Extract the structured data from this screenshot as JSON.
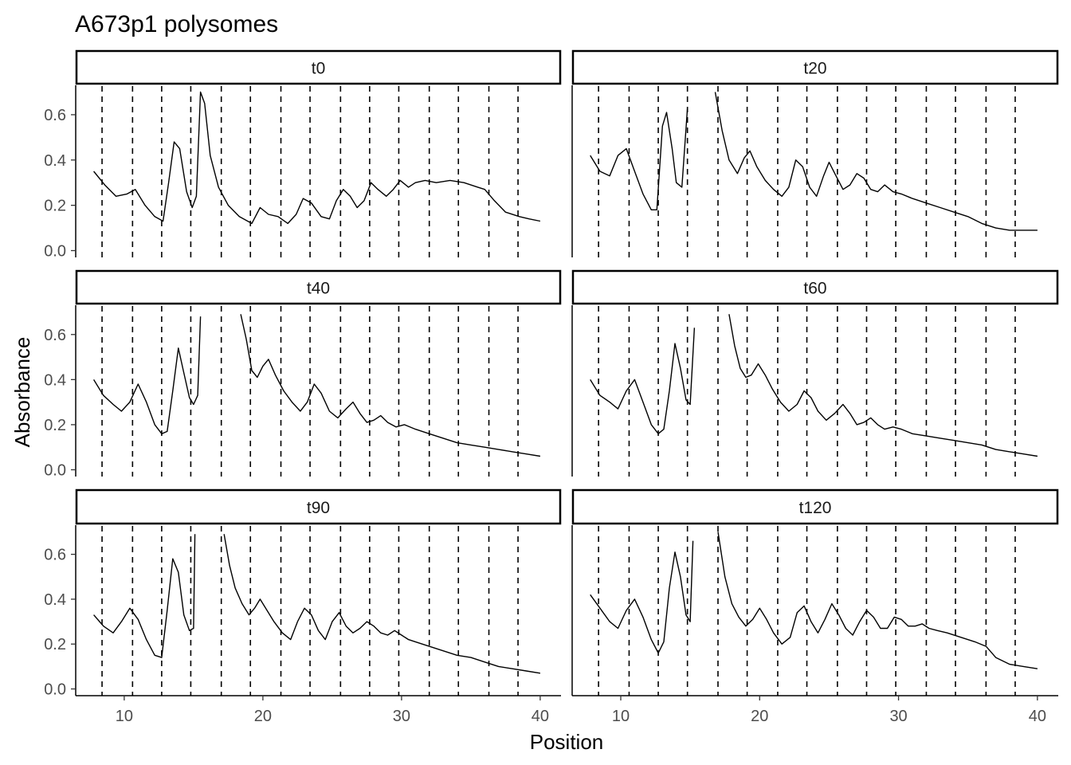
{
  "chart_data": {
    "type": "line",
    "title": "A673p1 polysomes",
    "xlabel": "Position",
    "ylabel": "Absorbance",
    "xlim": [
      6.5,
      41.5
    ],
    "ylim": [
      -0.03,
      0.73
    ],
    "x_ticks": [
      10,
      20,
      30,
      40
    ],
    "x_tick_labels": [
      "10",
      "20",
      "30",
      "40"
    ],
    "y_ticks": [
      0.0,
      0.2,
      0.4,
      0.6
    ],
    "y_tick_labels": [
      "0.0",
      "0.2",
      "0.4",
      "0.6"
    ],
    "fraction_boundaries": [
      8.4,
      10.6,
      12.7,
      14.8,
      17.0,
      19.1,
      21.3,
      23.4,
      25.6,
      27.7,
      29.8,
      32.0,
      34.1,
      36.3,
      38.4
    ],
    "grid": false,
    "line_color": "#000000",
    "panels": [
      {
        "label": "t0",
        "segments": [
          {
            "x": [
              7.8,
              8.6,
              9.4,
              10.2,
              10.8,
              11.5,
              12.2,
              12.8,
              13.2,
              13.6,
              14.0,
              14.5,
              14.9,
              15.2,
              15.5,
              15.8,
              16.2,
              16.8,
              17.5,
              18.3,
              19.2,
              19.8,
              20.4,
              21.1,
              21.8,
              22.4,
              22.9,
              23.5,
              24.2,
              24.8,
              25.3,
              25.8,
              26.3,
              26.8,
              27.3,
              27.8,
              28.3,
              28.9,
              29.4,
              29.9,
              30.5,
              31.0,
              31.7,
              32.5,
              33.5,
              34.5,
              35.5,
              36.0,
              36.7,
              37.5,
              38.5,
              39.2,
              40.0
            ],
            "y": [
              0.35,
              0.29,
              0.24,
              0.25,
              0.27,
              0.2,
              0.15,
              0.13,
              0.3,
              0.48,
              0.45,
              0.26,
              0.19,
              0.24,
              0.7,
              0.65,
              0.42,
              0.28,
              0.2,
              0.15,
              0.12,
              0.19,
              0.16,
              0.15,
              0.12,
              0.16,
              0.23,
              0.21,
              0.15,
              0.14,
              0.22,
              0.27,
              0.24,
              0.19,
              0.22,
              0.3,
              0.27,
              0.24,
              0.27,
              0.31,
              0.28,
              0.3,
              0.31,
              0.3,
              0.31,
              0.3,
              0.28,
              0.27,
              0.22,
              0.17,
              0.15,
              0.14,
              0.13
            ]
          }
        ]
      },
      {
        "label": "t20",
        "segments": [
          {
            "x": [
              7.8,
              8.5,
              9.2,
              9.8,
              10.4,
              11.0,
              11.6,
              12.2,
              12.6,
              13.0,
              13.3,
              13.7,
              14.0,
              14.4,
              14.8
            ],
            "y": [
              0.42,
              0.35,
              0.33,
              0.42,
              0.45,
              0.35,
              0.25,
              0.18,
              0.18,
              0.55,
              0.61,
              0.45,
              0.3,
              0.28,
              0.63
            ]
          },
          {
            "x": [
              16.8,
              17.3,
              17.8,
              18.4,
              18.9,
              19.3,
              19.8,
              20.4,
              21.0,
              21.6,
              22.1,
              22.6,
              23.1,
              23.6,
              24.1,
              24.6,
              25.0,
              25.5,
              26.0,
              26.5,
              27.0,
              27.5,
              28.0,
              28.5,
              29.0,
              29.6,
              30.2,
              31.0,
              32.0,
              33.0,
              34.0,
              35.0,
              36.0,
              37.0,
              38.0,
              39.0,
              40.0
            ],
            "y": [
              0.7,
              0.53,
              0.4,
              0.34,
              0.41,
              0.44,
              0.37,
              0.31,
              0.27,
              0.24,
              0.28,
              0.4,
              0.37,
              0.28,
              0.24,
              0.33,
              0.39,
              0.33,
              0.27,
              0.29,
              0.34,
              0.32,
              0.27,
              0.26,
              0.29,
              0.26,
              0.25,
              0.23,
              0.21,
              0.19,
              0.17,
              0.15,
              0.12,
              0.1,
              0.09,
              0.09,
              0.09
            ]
          }
        ]
      },
      {
        "label": "t40",
        "segments": [
          {
            "x": [
              7.8,
              8.5,
              9.2,
              9.8,
              10.4,
              11.0,
              11.6,
              12.2,
              12.7,
              13.1,
              13.5,
              13.9,
              14.3,
              14.7,
              15.0,
              15.3,
              15.5
            ],
            "y": [
              0.4,
              0.33,
              0.29,
              0.26,
              0.3,
              0.38,
              0.3,
              0.2,
              0.16,
              0.17,
              0.35,
              0.54,
              0.43,
              0.32,
              0.29,
              0.33,
              0.68
            ]
          },
          {
            "x": [
              18.4,
              18.8,
              19.2,
              19.6,
              20.0,
              20.4,
              20.9,
              21.5,
              22.1,
              22.7,
              23.2,
              23.7,
              24.2,
              24.8,
              25.4,
              26.0,
              26.5,
              27.0,
              27.5,
              28.0,
              28.5,
              29.0,
              29.6,
              30.2,
              31.0,
              32.0,
              33.0,
              34.0,
              35.0,
              36.0,
              37.0,
              38.0,
              39.0,
              40.0
            ],
            "y": [
              0.69,
              0.58,
              0.44,
              0.41,
              0.46,
              0.49,
              0.42,
              0.35,
              0.3,
              0.26,
              0.3,
              0.38,
              0.34,
              0.26,
              0.23,
              0.27,
              0.3,
              0.25,
              0.21,
              0.22,
              0.24,
              0.21,
              0.19,
              0.2,
              0.18,
              0.16,
              0.14,
              0.12,
              0.11,
              0.1,
              0.09,
              0.08,
              0.07,
              0.06
            ]
          }
        ]
      },
      {
        "label": "t60",
        "segments": [
          {
            "x": [
              7.8,
              8.5,
              9.2,
              9.8,
              10.4,
              11.0,
              11.6,
              12.2,
              12.7,
              13.1,
              13.5,
              13.9,
              14.3,
              14.7,
              15.0,
              15.3
            ],
            "y": [
              0.4,
              0.33,
              0.3,
              0.27,
              0.35,
              0.4,
              0.3,
              0.2,
              0.16,
              0.18,
              0.35,
              0.56,
              0.45,
              0.31,
              0.29,
              0.63
            ]
          },
          {
            "x": [
              17.8,
              18.2,
              18.6,
              19.0,
              19.4,
              19.9,
              20.4,
              20.9,
              21.5,
              22.1,
              22.7,
              23.2,
              23.7,
              24.2,
              24.8,
              25.4,
              26.0,
              26.5,
              27.0,
              27.5,
              28.0,
              28.5,
              29.0,
              29.6,
              30.2,
              31.0,
              32.0,
              33.0,
              34.0,
              35.0,
              36.0,
              37.0,
              38.0,
              39.0,
              40.0
            ],
            "y": [
              0.69,
              0.55,
              0.45,
              0.41,
              0.42,
              0.47,
              0.42,
              0.36,
              0.3,
              0.26,
              0.29,
              0.35,
              0.32,
              0.26,
              0.22,
              0.25,
              0.29,
              0.25,
              0.2,
              0.21,
              0.23,
              0.2,
              0.18,
              0.19,
              0.18,
              0.16,
              0.15,
              0.14,
              0.13,
              0.12,
              0.11,
              0.09,
              0.08,
              0.07,
              0.06
            ]
          }
        ]
      },
      {
        "label": "t90",
        "segments": [
          {
            "x": [
              7.8,
              8.5,
              9.2,
              9.8,
              10.4,
              11.0,
              11.6,
              12.2,
              12.7,
              13.1,
              13.5,
              13.9,
              14.3,
              14.7,
              15.0,
              15.1
            ],
            "y": [
              0.33,
              0.28,
              0.25,
              0.3,
              0.36,
              0.31,
              0.22,
              0.15,
              0.14,
              0.35,
              0.58,
              0.52,
              0.33,
              0.26,
              0.27,
              0.69
            ]
          },
          {
            "x": [
              17.2,
              17.6,
              18.0,
              18.5,
              19.0,
              19.4,
              19.8,
              20.3,
              20.8,
              21.4,
              22.0,
              22.5,
              23.0,
              23.5,
              24.0,
              24.5,
              25.0,
              25.5,
              26.0,
              26.5,
              27.0,
              27.5,
              28.0,
              28.5,
              29.0,
              29.5,
              30.0,
              30.5,
              31.0,
              32.0,
              33.0,
              34.0,
              35.0,
              36.0,
              37.0,
              38.0,
              39.0,
              40.0
            ],
            "y": [
              0.69,
              0.55,
              0.45,
              0.38,
              0.33,
              0.36,
              0.4,
              0.35,
              0.3,
              0.25,
              0.22,
              0.3,
              0.36,
              0.33,
              0.26,
              0.22,
              0.3,
              0.34,
              0.28,
              0.25,
              0.27,
              0.3,
              0.28,
              0.25,
              0.24,
              0.26,
              0.24,
              0.22,
              0.21,
              0.19,
              0.17,
              0.15,
              0.14,
              0.12,
              0.1,
              0.09,
              0.08,
              0.07
            ]
          }
        ]
      },
      {
        "label": "t120",
        "segments": [
          {
            "x": [
              7.8,
              8.5,
              9.2,
              9.8,
              10.4,
              11.0,
              11.6,
              12.2,
              12.7,
              13.1,
              13.5,
              13.9,
              14.3,
              14.7,
              15.0,
              15.2
            ],
            "y": [
              0.42,
              0.36,
              0.3,
              0.27,
              0.35,
              0.4,
              0.32,
              0.22,
              0.16,
              0.21,
              0.45,
              0.61,
              0.5,
              0.33,
              0.3,
              0.66
            ]
          },
          {
            "x": [
              17.0,
              17.5,
              18.0,
              18.5,
              19.0,
              19.5,
              20.0,
              20.5,
              21.0,
              21.6,
              22.2,
              22.7,
              23.2,
              23.7,
              24.2,
              24.7,
              25.2,
              25.7,
              26.2,
              26.7,
              27.2,
              27.7,
              28.2,
              28.7,
              29.2,
              29.7,
              30.2,
              30.7,
              31.2,
              31.7,
              32.2,
              32.8,
              33.5,
              34.5,
              35.5,
              36.3,
              37.0,
              38.0,
              39.0,
              40.0
            ],
            "y": [
              0.7,
              0.5,
              0.38,
              0.32,
              0.28,
              0.31,
              0.36,
              0.31,
              0.25,
              0.2,
              0.23,
              0.34,
              0.37,
              0.3,
              0.25,
              0.31,
              0.38,
              0.33,
              0.27,
              0.24,
              0.3,
              0.35,
              0.32,
              0.27,
              0.27,
              0.32,
              0.31,
              0.28,
              0.28,
              0.29,
              0.27,
              0.26,
              0.25,
              0.23,
              0.21,
              0.19,
              0.14,
              0.11,
              0.1,
              0.09
            ]
          }
        ]
      }
    ]
  }
}
